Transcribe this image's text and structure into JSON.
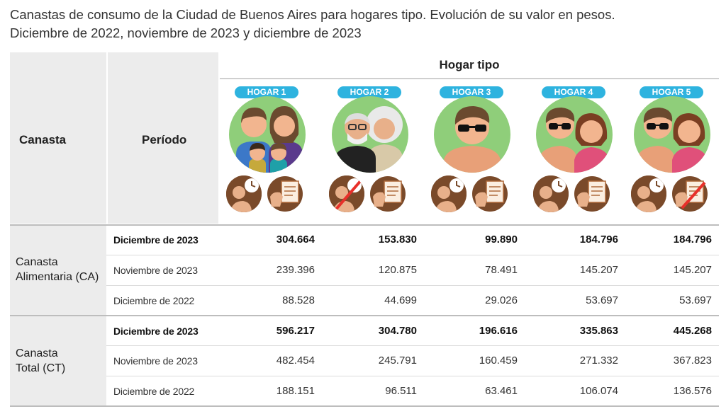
{
  "title": {
    "line1": "Canastas de consumo de la Ciudad de Buenos Aires para hogares tipo. Evolución de su valor en pesos.",
    "line2": "Diciembre de 2022, noviembre de 2023 y diciembre de 2023"
  },
  "header": {
    "canasta": "Canasta",
    "periodo": "Período",
    "hogar_tipo": "Hogar tipo",
    "hogares": [
      "HOGAR 1",
      "HOGAR 2",
      "HOGAR 3",
      "HOGAR 4",
      "HOGAR 5"
    ]
  },
  "groups": [
    {
      "label_line1": "Canasta",
      "label_line2": "Alimentaria (CA)",
      "rows": [
        {
          "period": "Diciembre de 2023",
          "values": [
            "304.664",
            "153.830",
            "99.890",
            "184.796",
            "184.796"
          ]
        },
        {
          "period": "Noviembre de 2023",
          "values": [
            "239.396",
            "120.875",
            "78.491",
            "145.207",
            "145.207"
          ]
        },
        {
          "period": "Diciembre de 2022",
          "values": [
            "88.528",
            "44.699",
            "29.026",
            "53.697",
            "53.697"
          ]
        }
      ]
    },
    {
      "label_line1": "Canasta",
      "label_line2": "Total (CT)",
      "rows": [
        {
          "period": "Diciembre de 2023",
          "values": [
            "596.217",
            "304.780",
            "196.616",
            "335.863",
            "445.268"
          ]
        },
        {
          "period": "Noviembre de 2023",
          "values": [
            "482.454",
            "245.791",
            "160.459",
            "271.332",
            "367.823"
          ]
        },
        {
          "period": "Diciembre de 2022",
          "values": [
            "188.151",
            "96.511",
            "63.461",
            "106.074",
            "136.576"
          ]
        }
      ]
    }
  ],
  "colors": {
    "badge": "#2eb3df",
    "avatar_bg": "#8fce7a",
    "cell_bg": "#ececec"
  }
}
